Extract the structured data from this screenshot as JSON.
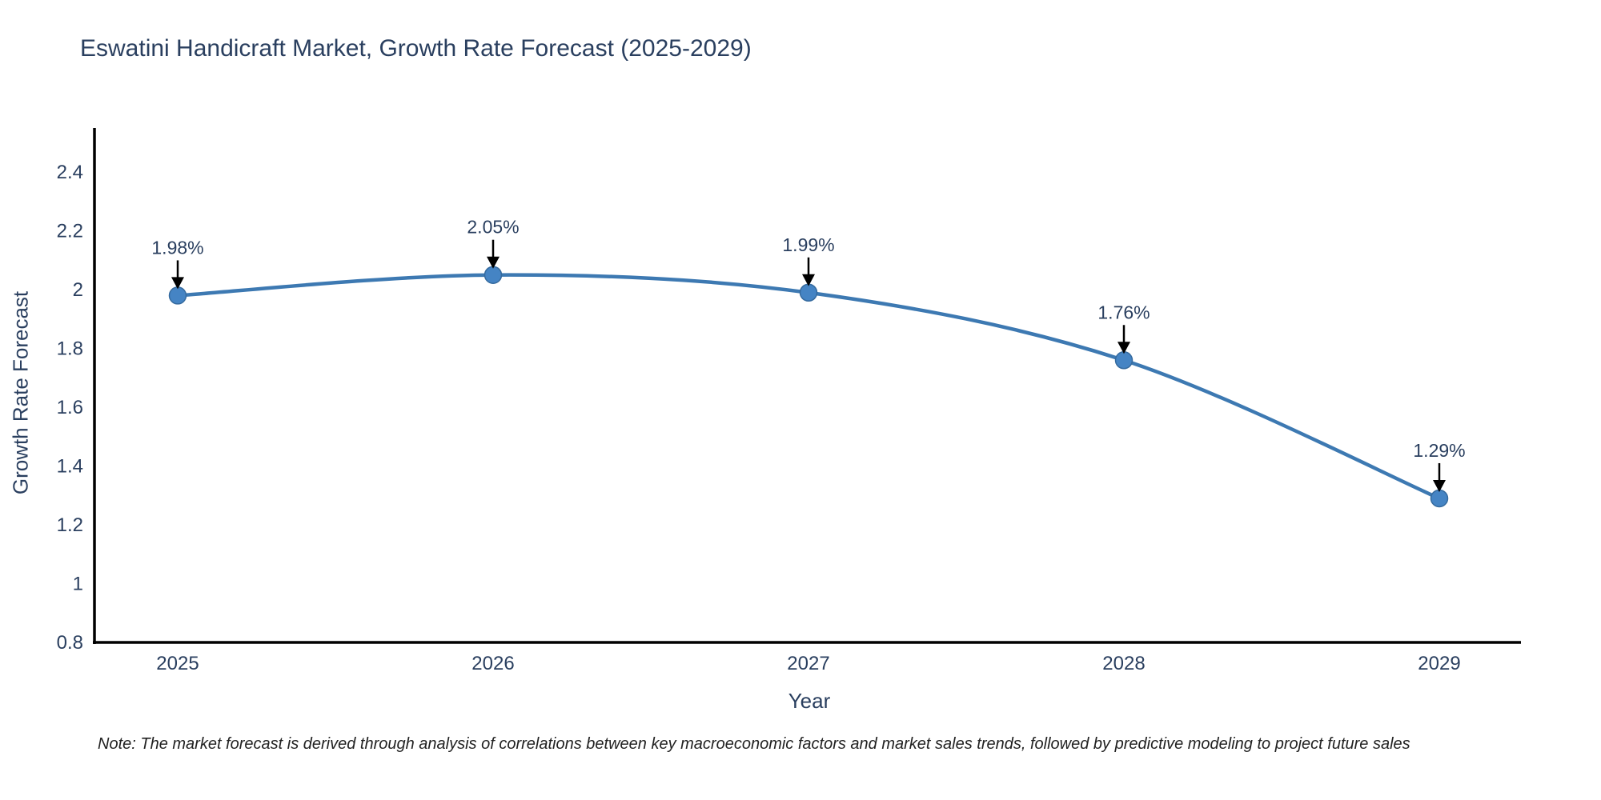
{
  "title": "Eswatini Handicraft Market, Growth Rate Forecast (2025-2029)",
  "note": "Note: The market forecast is derived through analysis of correlations between key macroeconomic factors and market sales trends, followed by predictive modeling to project future sales",
  "chart_data": {
    "type": "line",
    "title": "Eswatini Handicraft Market, Growth Rate Forecast (2025-2029)",
    "x": [
      "2025",
      "2026",
      "2027",
      "2028",
      "2029"
    ],
    "values": [
      1.98,
      2.05,
      1.99,
      1.76,
      1.29
    ],
    "point_labels": [
      "1.98%",
      "2.05%",
      "1.99%",
      "1.76%",
      "1.29%"
    ],
    "xlabel": "Year",
    "ylabel": "Growth Rate Forecast",
    "ylim": [
      0.8,
      2.55
    ],
    "ytick_values": [
      0.8,
      1.0,
      1.2,
      1.4,
      1.6,
      1.8,
      2.0,
      2.2,
      2.4
    ],
    "ytick_labels": [
      "0.8",
      "1",
      "1.2",
      "1.4",
      "1.6",
      "1.8",
      "2",
      "2.2",
      "2.4"
    ],
    "grid": false,
    "legend": "none",
    "smooth": true,
    "colors": {
      "line": "#3d79b2",
      "marker_fill": "#4584c4",
      "marker_edge": "#356a9e",
      "axis": "#000000",
      "text": "#2a3f5f",
      "annotation_arrow": "#000000"
    }
  }
}
